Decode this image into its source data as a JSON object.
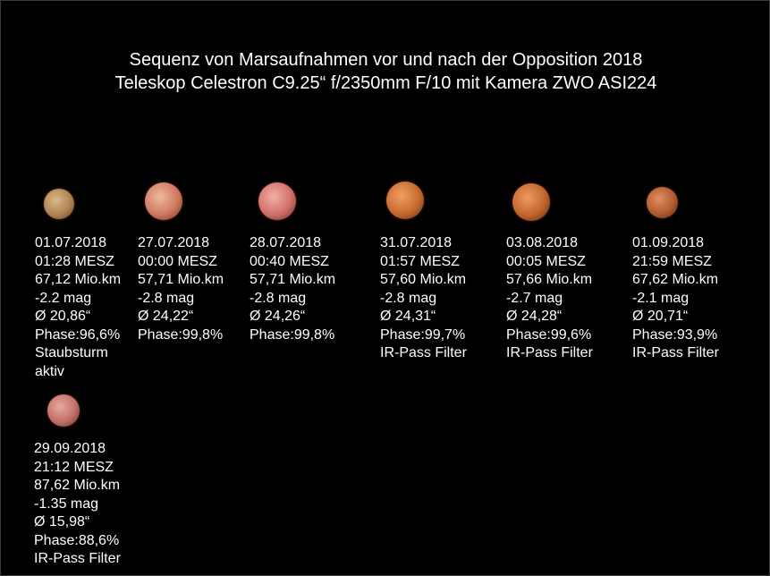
{
  "title": {
    "line1": "Sequenz von Marsaufnahmen vor und nach der Opposition 2018",
    "line2": "Teleskop Celestron C9.25“ f/2350mm F/10 mit Kamera ZWO ASI224"
  },
  "observations": [
    {
      "date": "01.07.2018",
      "time": "01:28 MESZ",
      "distance": "67,12 Mio.km",
      "magnitude": "-2.2 mag",
      "diameter": "Ø 20,86“",
      "phase": "Phase:96,6%",
      "note1": "Staubsturm",
      "note2": "aktiv",
      "colors": {
        "light": "#d9b98a",
        "mid": "#b08450",
        "dark": "#5a3d20"
      }
    },
    {
      "date": "27.07.2018",
      "time": "00:00 MESZ",
      "distance": "57,71 Mio.km",
      "magnitude": "-2.8 mag",
      "diameter": "Ø 24,22“",
      "phase": "Phase:99,8%",
      "note1": "",
      "note2": "",
      "colors": {
        "light": "#f0b8a0",
        "mid": "#d07a60",
        "dark": "#6a3020"
      }
    },
    {
      "date": "28.07.2018",
      "time": "00:40 MESZ",
      "distance": "57,71 Mio.km",
      "magnitude": "-2.8 mag",
      "diameter": "Ø 24,26“",
      "phase": "Phase:99,8%",
      "note1": "",
      "note2": "",
      "colors": {
        "light": "#f4b0a8",
        "mid": "#d07068",
        "dark": "#6a2c28"
      }
    },
    {
      "date": "31.07.2018",
      "time": "01:57 MESZ",
      "distance": "57,60 Mio.km",
      "magnitude": "-2.8 mag",
      "diameter": "Ø 24,31“",
      "phase": "Phase:99,7%",
      "note1": "IR-Pass Filter",
      "note2": "",
      "colors": {
        "light": "#f0a060",
        "mid": "#c86a30",
        "dark": "#5c2a10"
      }
    },
    {
      "date": "03.08.2018",
      "time": "00:05 MESZ",
      "distance": "57,66 Mio.km",
      "magnitude": "-2.7 mag",
      "diameter": "Ø 24,28“",
      "phase": "Phase:99,6%",
      "note1": "IR-Pass Filter",
      "note2": "",
      "colors": {
        "light": "#ec9c60",
        "mid": "#c26430",
        "dark": "#5a2810"
      }
    },
    {
      "date": "01.09.2018",
      "time": "21:59 MESZ",
      "distance": "67,62 Mio.km",
      "magnitude": "-2.1 mag",
      "diameter": "Ø 20,71“",
      "phase": "Phase:93,9%",
      "note1": "IR-Pass Filter",
      "note2": "",
      "colors": {
        "light": "#e09060",
        "mid": "#b05c30",
        "dark": "#502410"
      }
    },
    {
      "date": "29.09.2018",
      "time": "21:12 MESZ",
      "distance": "87,62 Mio.km",
      "magnitude": "-1.35 mag",
      "diameter": "Ø 15,98“",
      "phase": "Phase:88,6%",
      "note1": "IR-Pass Filter",
      "note2": "",
      "colors": {
        "light": "#eaa8a0",
        "mid": "#c07068",
        "dark": "#5a2c28"
      }
    }
  ]
}
